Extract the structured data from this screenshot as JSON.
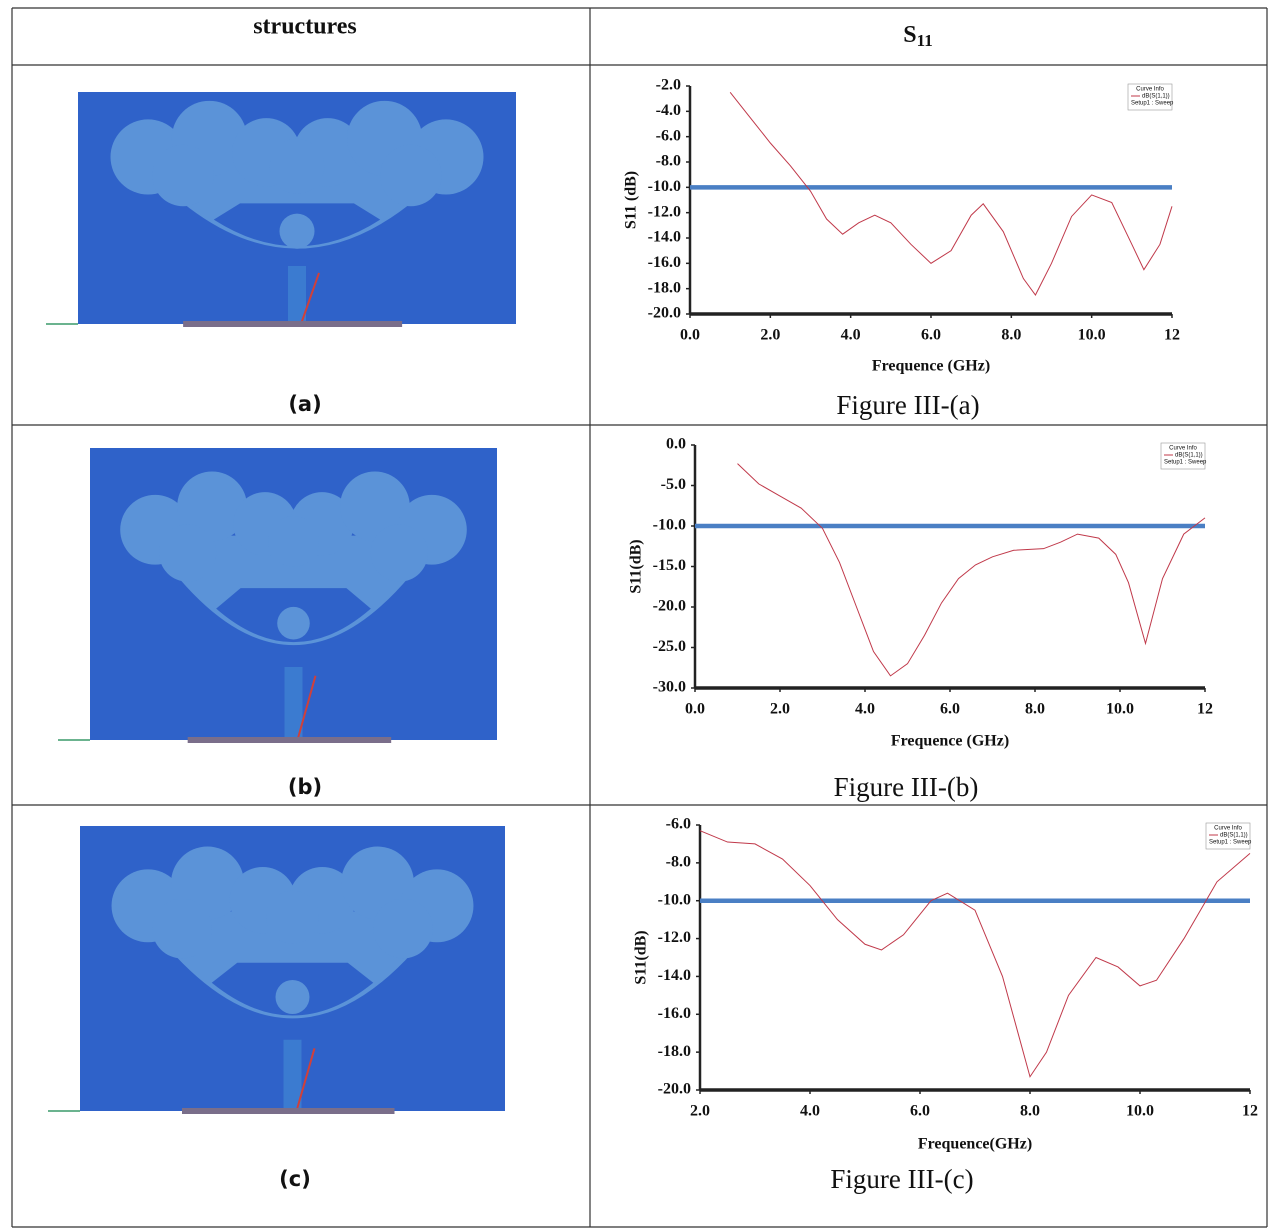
{
  "table": {
    "header": [
      "structures",
      {
        "text": "S",
        "sub": "11"
      }
    ],
    "rows": [
      {
        "label": "(a)",
        "caption": "Figure III-(a)"
      },
      {
        "label": "(b)",
        "caption": "Figure III-(b)"
      },
      {
        "label": "(c)",
        "caption": "Figure III-(c)"
      }
    ]
  },
  "chart_data": [
    {
      "type": "line",
      "xlabel": "Frequence (GHz)",
      "ylabel": "S11 (dB)",
      "legend_title": "Curve Info",
      "xlim": [
        0,
        12
      ],
      "ylim": [
        -20,
        -2
      ],
      "xticks": [
        {
          "value": 0,
          "label": "0.0"
        },
        {
          "value": 2,
          "label": "2.0"
        },
        {
          "value": 4,
          "label": "4.0"
        },
        {
          "value": 6,
          "label": "6.0"
        },
        {
          "value": 8,
          "label": "8.0"
        },
        {
          "value": 10,
          "label": "10.0"
        },
        12
      ],
      "yticks": [
        {
          "value": -2,
          "label": "-2.0"
        },
        {
          "value": -4,
          "label": "-4.0"
        },
        {
          "value": -6,
          "label": "-6.0"
        },
        {
          "value": -8,
          "label": "-8.0"
        },
        {
          "value": -10,
          "label": "-10.0"
        },
        {
          "value": -12,
          "label": "-12.0"
        },
        {
          "value": -14,
          "label": "-14.0"
        },
        {
          "value": -16,
          "label": "-16.0"
        },
        {
          "value": -18,
          "label": "-18.0"
        },
        {
          "value": -20,
          "label": "-20.0"
        }
      ],
      "threshold": -10,
      "threshold_color": "#4a7fc4",
      "x": [
        1,
        1.5,
        2,
        2.5,
        3,
        3.4,
        3.8,
        4.2,
        4.6,
        5,
        5.5,
        6,
        6.5,
        7,
        7.3,
        7.8,
        8.3,
        8.6,
        9,
        9.5,
        10,
        10.5,
        11,
        11.3,
        11.7,
        12
      ],
      "series": [
        {
          "name": "dB(S(1,1))",
          "color": "#c0394a",
          "values": [
            -2.5,
            -4.5,
            -6.5,
            -8.3,
            -10.3,
            -12.5,
            -13.7,
            -12.8,
            -12.2,
            -12.8,
            -14.5,
            -16,
            -15,
            -12.2,
            -11.3,
            -13.5,
            -17.2,
            -18.5,
            -16,
            -12.3,
            -10.6,
            -11.2,
            -14.5,
            -16.5,
            -14.5,
            -11.5
          ]
        }
      ],
      "legend_note": "Setup1 : Sweep"
    },
    {
      "type": "line",
      "xlabel": "Frequence (GHz)",
      "ylabel": "S11(dB)",
      "legend_title": "Curve Info",
      "xlim": [
        0,
        12
      ],
      "ylim": [
        -30,
        0
      ],
      "xticks": [
        {
          "value": 0,
          "label": "0.0"
        },
        {
          "value": 2,
          "label": "2.0"
        },
        {
          "value": 4,
          "label": "4.0"
        },
        {
          "value": 6,
          "label": "6.0"
        },
        {
          "value": 8,
          "label": "8.0"
        },
        {
          "value": 10,
          "label": "10.0"
        },
        12
      ],
      "yticks": [
        {
          "value": 0,
          "label": "0.0"
        },
        {
          "value": -5,
          "label": "-5.0"
        },
        {
          "value": -10,
          "label": "-10.0"
        },
        {
          "value": -15,
          "label": "-15.0"
        },
        {
          "value": -20,
          "label": "-20.0"
        },
        {
          "value": -25,
          "label": "-25.0"
        },
        {
          "value": -30,
          "label": "-30.0"
        }
      ],
      "threshold": -10,
      "threshold_color": "#4a7fc4",
      "x": [
        1,
        1.5,
        2,
        2.5,
        3,
        3.4,
        3.8,
        4.2,
        4.6,
        5,
        5.4,
        5.8,
        6.2,
        6.6,
        7,
        7.5,
        8.2,
        8.6,
        9,
        9.5,
        9.9,
        10.2,
        10.6,
        11,
        11.5,
        12
      ],
      "series": [
        {
          "name": "dB(S(1,1))",
          "color": "#c0394a",
          "values": [
            -2.3,
            -4.8,
            -6.3,
            -7.8,
            -10.3,
            -14.5,
            -20,
            -25.5,
            -28.5,
            -27,
            -23.5,
            -19.5,
            -16.5,
            -14.8,
            -13.8,
            -13,
            -12.8,
            -12,
            -11,
            -11.5,
            -13.5,
            -17,
            -24.5,
            -16.5,
            -11,
            -9
          ]
        }
      ],
      "legend_note": "Setup1 : Sweep"
    },
    {
      "type": "line",
      "xlabel": "Frequence(GHz)",
      "ylabel": "S11(dB)",
      "legend_title": "Curve Info",
      "xlim": [
        2,
        12
      ],
      "ylim": [
        -20,
        -6
      ],
      "xticks": [
        {
          "value": 2,
          "label": "2.0"
        },
        {
          "value": 4,
          "label": "4.0"
        },
        {
          "value": 6,
          "label": "6.0"
        },
        {
          "value": 8,
          "label": "8.0"
        },
        {
          "value": 10,
          "label": "10.0"
        },
        12
      ],
      "yticks": [
        {
          "value": -6,
          "label": "-6.0"
        },
        {
          "value": -8,
          "label": "-8.0"
        },
        {
          "value": -10,
          "label": "-10.0"
        },
        {
          "value": -12,
          "label": "-12.0"
        },
        {
          "value": -14,
          "label": "-14.0"
        },
        {
          "value": -16,
          "label": "-16.0"
        },
        {
          "value": -18,
          "label": "-18.0"
        },
        {
          "value": -20,
          "label": "-20.0"
        }
      ],
      "threshold": -10,
      "threshold_color": "#4a7fc4",
      "x": [
        2,
        2.5,
        3,
        3.5,
        4,
        4.5,
        5,
        5.3,
        5.7,
        6.2,
        6.5,
        7,
        7.5,
        8,
        8.3,
        8.7,
        9.2,
        9.6,
        10,
        10.3,
        10.8,
        11.4,
        12
      ],
      "series": [
        {
          "name": "dB(S(1,1))",
          "color": "#c0394a",
          "values": [
            -6.3,
            -6.9,
            -7,
            -7.8,
            -9.2,
            -11,
            -12.3,
            -12.6,
            -11.8,
            -10,
            -9.6,
            -10.5,
            -14,
            -19.3,
            -18,
            -15,
            -13,
            -13.5,
            -14.5,
            -14.2,
            -12,
            -9,
            -7.5
          ]
        }
      ],
      "legend_note": "Setup1 : Sweep"
    }
  ]
}
